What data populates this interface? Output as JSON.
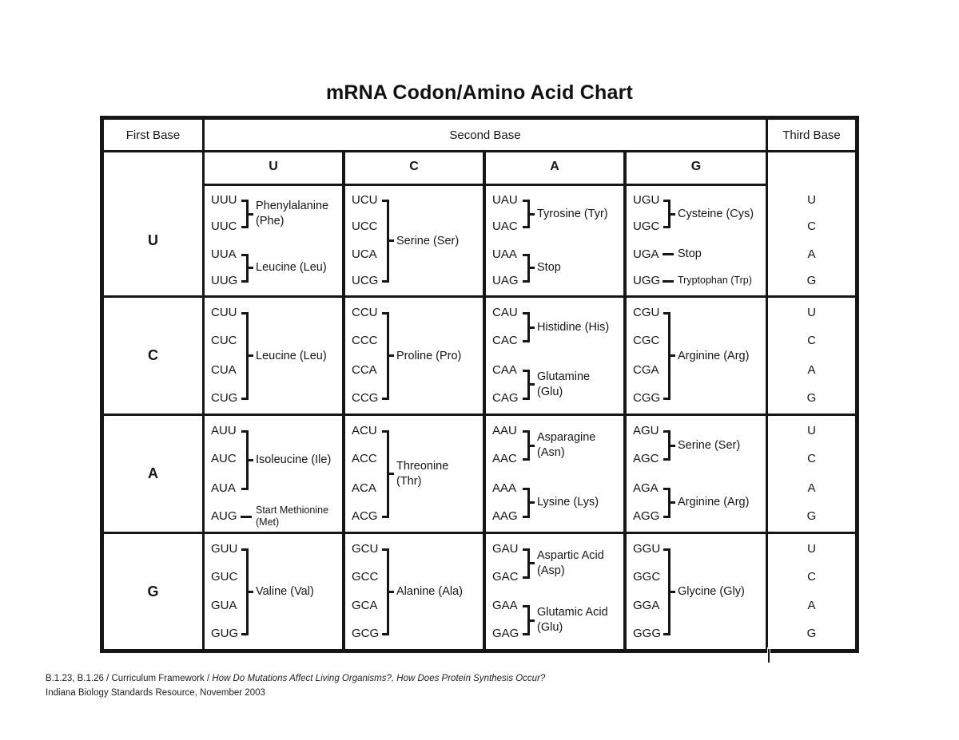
{
  "title": "mRNA Codon/Amino Acid Chart",
  "colors": {
    "ink": "#161616",
    "background": "#ffffff"
  },
  "table": {
    "header": {
      "first": "First Base",
      "second": "Second Base",
      "third": "Third Base"
    },
    "second_base_letters": [
      "U",
      "C",
      "A",
      "G"
    ],
    "third_base_letters": [
      "U",
      "C",
      "A",
      "G"
    ],
    "rows": [
      {
        "first_base": "U",
        "cells": [
          {
            "groups": [
              {
                "codons": [
                  "UUU",
                  "UUC"
                ],
                "slots": [
                  0,
                  1
                ],
                "connector": "bracket",
                "label": "Phenylalanine (Phe)",
                "label_lines": [
                  "Phenylalanine",
                  "(Phe)"
                ]
              },
              {
                "codons": [
                  "UUA",
                  "UUG"
                ],
                "slots": [
                  2,
                  3
                ],
                "connector": "bracket",
                "label": "Leucine (Leu)",
                "label_lines": [
                  "Leucine (Leu)"
                ]
              }
            ]
          },
          {
            "groups": [
              {
                "codons": [
                  "UCU",
                  "UCC",
                  "UCA",
                  "UCG"
                ],
                "slots": [
                  0,
                  1,
                  2,
                  3
                ],
                "connector": "bracket",
                "label": "Serine (Ser)",
                "label_lines": [
                  "Serine (Ser)"
                ]
              }
            ]
          },
          {
            "groups": [
              {
                "codons": [
                  "UAU",
                  "UAC"
                ],
                "slots": [
                  0,
                  1
                ],
                "connector": "bracket",
                "label": "Tyrosine (Tyr)",
                "label_lines": [
                  "Tyrosine (Tyr)"
                ]
              },
              {
                "codons": [
                  "UAA",
                  "UAG"
                ],
                "slots": [
                  2,
                  3
                ],
                "connector": "bracket",
                "label": "Stop",
                "label_lines": [
                  "Stop"
                ]
              }
            ]
          },
          {
            "groups": [
              {
                "codons": [
                  "UGU",
                  "UGC"
                ],
                "slots": [
                  0,
                  1
                ],
                "connector": "bracket",
                "label": "Cysteine (Cys)",
                "label_lines": [
                  "Cysteine (Cys)"
                ]
              },
              {
                "codons": [
                  "UGA"
                ],
                "slots": [
                  2
                ],
                "connector": "dash",
                "label": "Stop",
                "label_lines": [
                  "Stop"
                ]
              },
              {
                "codons": [
                  "UGG"
                ],
                "slots": [
                  3
                ],
                "connector": "dash",
                "label": "Tryptophan (Trp)",
                "label_lines": [
                  "Tryptophan (Trp)"
                ],
                "small": true
              }
            ]
          }
        ]
      },
      {
        "first_base": "C",
        "cells": [
          {
            "groups": [
              {
                "codons": [
                  "CUU",
                  "CUC",
                  "CUA",
                  "CUG"
                ],
                "slots": [
                  0,
                  1,
                  2,
                  3
                ],
                "connector": "bracket",
                "label": "Leucine (Leu)",
                "label_lines": [
                  "Leucine (Leu)"
                ]
              }
            ]
          },
          {
            "groups": [
              {
                "codons": [
                  "CCU",
                  "CCC",
                  "CCA",
                  "CCG"
                ],
                "slots": [
                  0,
                  1,
                  2,
                  3
                ],
                "connector": "bracket",
                "label": "Proline (Pro)",
                "label_lines": [
                  "Proline (Pro)"
                ]
              }
            ]
          },
          {
            "groups": [
              {
                "codons": [
                  "CAU",
                  "CAC"
                ],
                "slots": [
                  0,
                  1
                ],
                "connector": "bracket",
                "label": "Histidine (His)",
                "label_lines": [
                  "Histidine (His)"
                ]
              },
              {
                "codons": [
                  "CAA",
                  "CAG"
                ],
                "slots": [
                  2,
                  3
                ],
                "connector": "bracket",
                "label": "Glutamine (Glu)",
                "label_lines": [
                  "Glutamine",
                  "(Glu)"
                ]
              }
            ]
          },
          {
            "groups": [
              {
                "codons": [
                  "CGU",
                  "CGC",
                  "CGA",
                  "CGG"
                ],
                "slots": [
                  0,
                  1,
                  2,
                  3
                ],
                "connector": "bracket",
                "label": "Arginine (Arg)",
                "label_lines": [
                  "Arginine (Arg)"
                ]
              }
            ]
          }
        ]
      },
      {
        "first_base": "A",
        "cells": [
          {
            "groups": [
              {
                "codons": [
                  "AUU",
                  "AUC",
                  "AUA"
                ],
                "slots": [
                  0,
                  1,
                  2
                ],
                "connector": "bracket",
                "label": "Isoleucine (Ile)",
                "label_lines": [
                  "Isoleucine (Ile)"
                ]
              },
              {
                "codons": [
                  "AUG"
                ],
                "slots": [
                  3
                ],
                "connector": "dash",
                "label": "Start Methionine (Met)",
                "label_lines": [
                  "Start Methionine",
                  "(Met)"
                ],
                "small": true
              }
            ]
          },
          {
            "groups": [
              {
                "codons": [
                  "ACU",
                  "ACC",
                  "ACA",
                  "ACG"
                ],
                "slots": [
                  0,
                  1,
                  2,
                  3
                ],
                "connector": "bracket",
                "label": "Threonine (Thr)",
                "label_lines": [
                  "Threonine",
                  "(Thr)"
                ]
              }
            ]
          },
          {
            "groups": [
              {
                "codons": [
                  "AAU",
                  "AAC"
                ],
                "slots": [
                  0,
                  1
                ],
                "connector": "bracket",
                "label": "Asparagine (Asn)",
                "label_lines": [
                  "Asparagine",
                  "(Asn)"
                ]
              },
              {
                "codons": [
                  "AAA",
                  "AAG"
                ],
                "slots": [
                  2,
                  3
                ],
                "connector": "bracket",
                "label": "Lysine (Lys)",
                "label_lines": [
                  "Lysine (Lys)"
                ]
              }
            ]
          },
          {
            "groups": [
              {
                "codons": [
                  "AGU",
                  "AGC"
                ],
                "slots": [
                  0,
                  1
                ],
                "connector": "bracket",
                "label": "Serine (Ser)",
                "label_lines": [
                  "Serine (Ser)"
                ]
              },
              {
                "codons": [
                  "AGA",
                  "AGG"
                ],
                "slots": [
                  2,
                  3
                ],
                "connector": "bracket",
                "label": "Arginine (Arg)",
                "label_lines": [
                  "Arginine (Arg)"
                ]
              }
            ]
          }
        ]
      },
      {
        "first_base": "G",
        "cells": [
          {
            "groups": [
              {
                "codons": [
                  "GUU",
                  "GUC",
                  "GUA",
                  "GUG"
                ],
                "slots": [
                  0,
                  1,
                  2,
                  3
                ],
                "connector": "bracket",
                "label": "Valine (Val)",
                "label_lines": [
                  "Valine (Val)"
                ]
              }
            ]
          },
          {
            "groups": [
              {
                "codons": [
                  "GCU",
                  "GCC",
                  "GCA",
                  "GCG"
                ],
                "slots": [
                  0,
                  1,
                  2,
                  3
                ],
                "connector": "bracket",
                "label": "Alanine (Ala)",
                "label_lines": [
                  "Alanine (Ala)"
                ]
              }
            ]
          },
          {
            "groups": [
              {
                "codons": [
                  "GAU",
                  "GAC"
                ],
                "slots": [
                  0,
                  1
                ],
                "connector": "bracket",
                "label": "Aspartic Acid (Asp)",
                "label_lines": [
                  "Aspartic Acid",
                  "(Asp)"
                ]
              },
              {
                "codons": [
                  "GAA",
                  "GAG"
                ],
                "slots": [
                  2,
                  3
                ],
                "connector": "bracket",
                "label": "Glutamic Acid (Glu)",
                "label_lines": [
                  "Glutamic Acid",
                  "(Glu)"
                ]
              }
            ]
          },
          {
            "groups": [
              {
                "codons": [
                  "GGU",
                  "GGC",
                  "GGA",
                  "GGG"
                ],
                "slots": [
                  0,
                  1,
                  2,
                  3
                ],
                "connector": "bracket",
                "label": "Glycine (Gly)",
                "label_lines": [
                  "Glycine (Gly)"
                ]
              }
            ]
          }
        ]
      }
    ]
  },
  "footer": {
    "line1_regular": "B.1.23, B.1.26 / Curriculum Framework / ",
    "line1_italic": "How Do Mutations Affect Living Organisms?, How Does Protein Synthesis Occur?",
    "line2": "Indiana Biology Standards Resource, November 2003"
  }
}
